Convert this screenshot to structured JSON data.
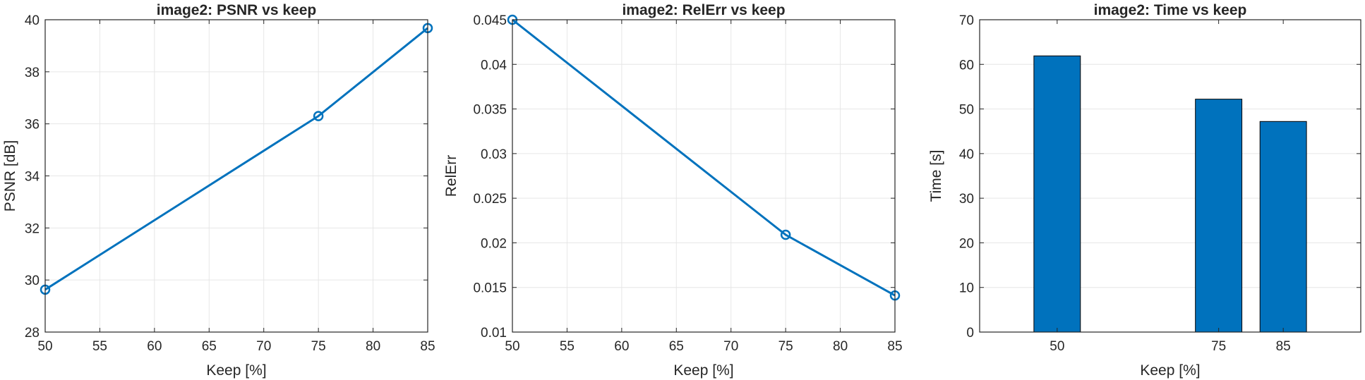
{
  "colors": {
    "series": "#0072BD",
    "grid": "#E6E6E6",
    "axes": "#262626",
    "background": "#FFFFFF"
  },
  "chart_data": [
    {
      "type": "line",
      "title": "image2: PSNR vs keep",
      "xlabel": "Keep [%]",
      "ylabel": "PSNR [dB]",
      "x": [
        50,
        75,
        85
      ],
      "y": [
        29.63,
        36.3,
        39.68
      ],
      "marker": "circle",
      "xlim": [
        50,
        85
      ],
      "ylim": [
        28,
        40
      ],
      "xticks": [
        "50",
        "55",
        "60",
        "65",
        "70",
        "75",
        "80",
        "85"
      ],
      "yticks": [
        "28",
        "30",
        "32",
        "34",
        "36",
        "38",
        "40"
      ],
      "grid": true
    },
    {
      "type": "line",
      "title": "image2: RelErr vs keep",
      "xlabel": "Keep [%]",
      "ylabel": "RelErr",
      "x": [
        50,
        75,
        85
      ],
      "y": [
        0.045,
        0.0209,
        0.0141
      ],
      "marker": "circle",
      "xlim": [
        50,
        85
      ],
      "ylim": [
        0.01,
        0.045
      ],
      "xticks": [
        "50",
        "55",
        "60",
        "65",
        "70",
        "75",
        "80",
        "85"
      ],
      "yticks": [
        "0.01",
        "0.015",
        "0.02",
        "0.025",
        "0.03",
        "0.035",
        "0.04",
        "0.045"
      ],
      "grid": true
    },
    {
      "type": "bar",
      "title": "image2: Time vs keep",
      "xlabel": "Keep [%]",
      "ylabel": "Time [s]",
      "categories": [
        "50",
        "75",
        "85"
      ],
      "x": [
        50,
        75,
        85
      ],
      "values": [
        61.9,
        52.2,
        47.2
      ],
      "xlim": [
        38,
        97
      ],
      "ylim": [
        0,
        70
      ],
      "xticks": [
        "50",
        "75",
        "85"
      ],
      "yticks": [
        "0",
        "10",
        "20",
        "30",
        "40",
        "50",
        "60",
        "70"
      ],
      "grid": true
    }
  ]
}
